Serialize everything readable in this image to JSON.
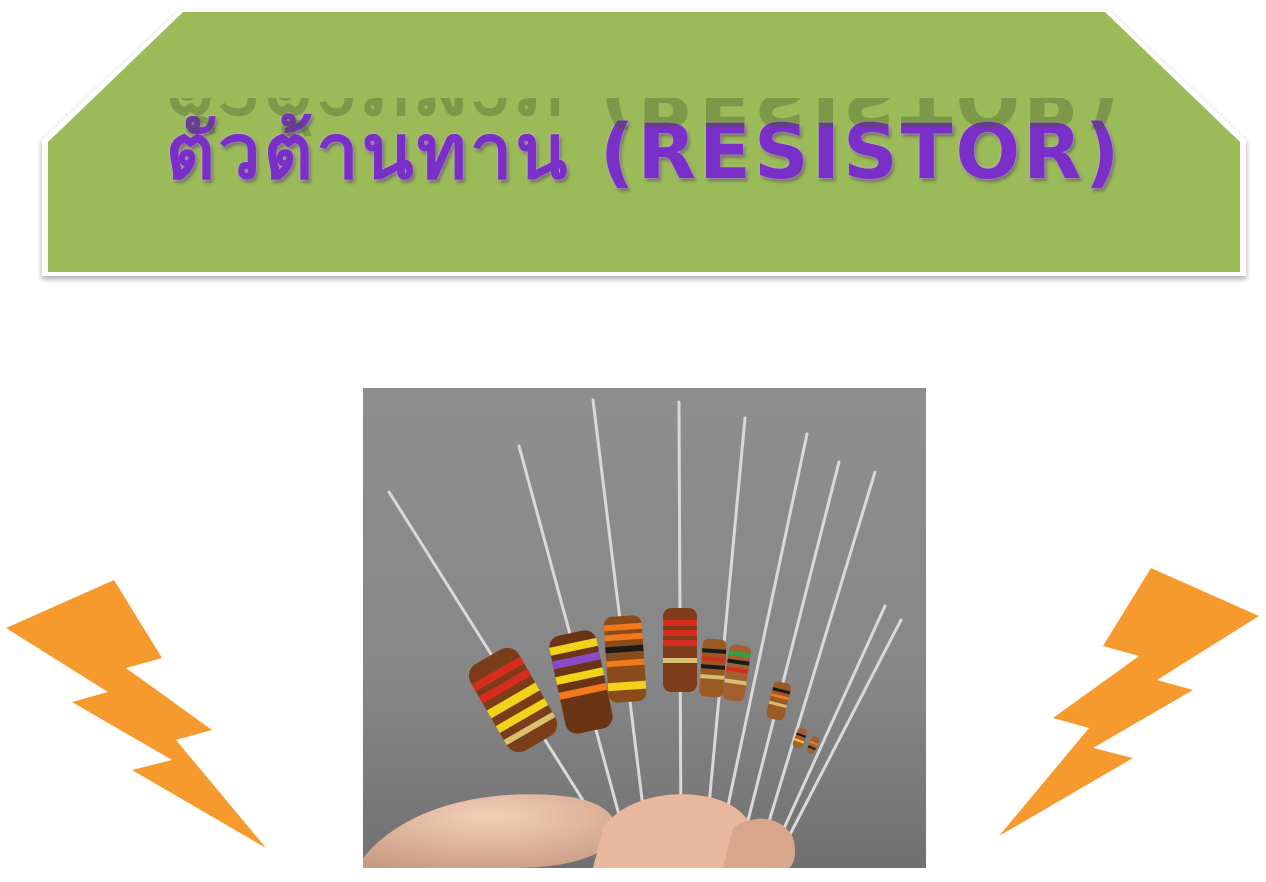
{
  "slide": {
    "title": "ตัวต้านทาน (RESISTOR)"
  },
  "colors": {
    "banner_fill": "#9bbb59",
    "title_text": "#7a2fc8",
    "bolt_fill": "#f79a2e",
    "photo_background": "#8c8c8c"
  },
  "icons": {
    "left_decoration": "lightning-bolt-icon",
    "right_decoration": "lightning-bolt-icon"
  }
}
